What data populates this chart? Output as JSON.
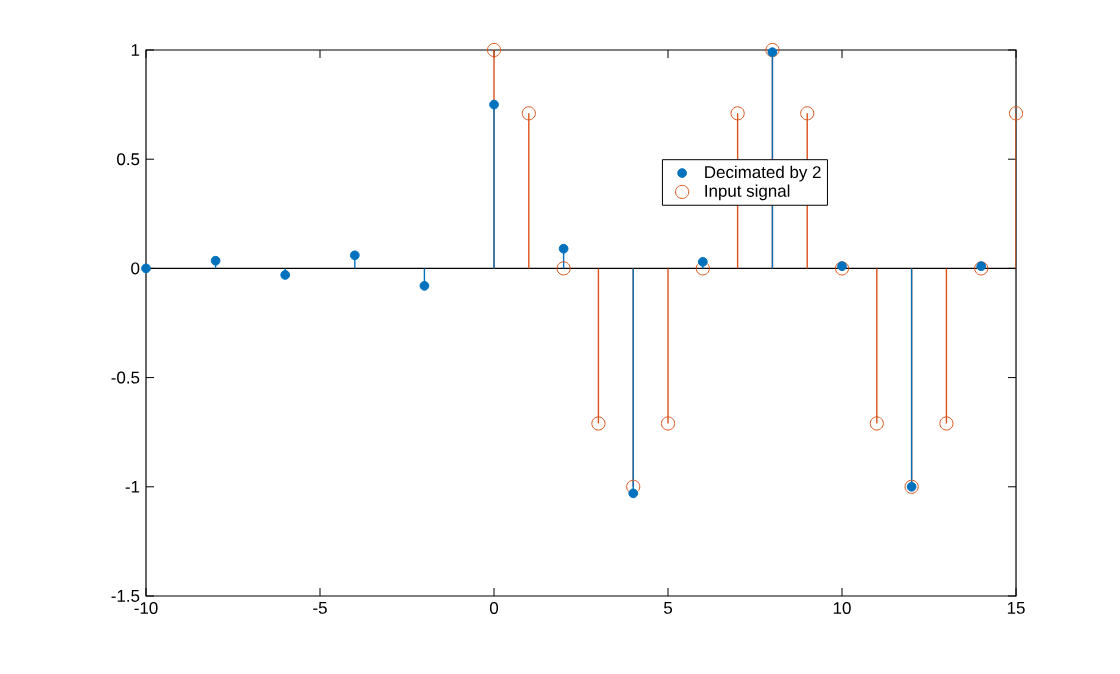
{
  "chart_data": {
    "type": "lollipop",
    "xlim": [
      -10,
      15
    ],
    "ylim": [
      -1.5,
      1
    ],
    "xticks": [
      -10,
      -5,
      0,
      5,
      10,
      15
    ],
    "yticks": [
      -1.5,
      -1,
      -0.5,
      0,
      0.5,
      1
    ],
    "legend": "right",
    "marker": "circle",
    "grid": false,
    "ref_lines": [
      {
        "axis": "y",
        "value": 0,
        "color": "#000000"
      }
    ],
    "series": [
      {
        "name": "Decimated by 2",
        "color": "#0072bd",
        "x": [
          -10,
          -8,
          -6,
          -4,
          -2,
          0,
          2,
          4,
          6,
          8,
          10,
          12,
          14
        ],
        "values": [
          0,
          0.035,
          -0.03,
          0.06,
          -0.08,
          0.75,
          0.09,
          -1.03,
          0.03,
          0.99,
          0.01,
          -1.0,
          0.01
        ]
      },
      {
        "name": "Input signal",
        "color": "#d95319",
        "x": [
          0,
          1,
          2,
          3,
          4,
          5,
          6,
          7,
          8,
          9,
          10,
          11,
          12,
          13,
          14,
          15
        ],
        "values": [
          1,
          0.71,
          0,
          -0.71,
          -1,
          -0.71,
          0,
          0.71,
          1,
          0.71,
          0,
          -0.71,
          -1,
          -0.71,
          0,
          0.71
        ]
      }
    ]
  }
}
